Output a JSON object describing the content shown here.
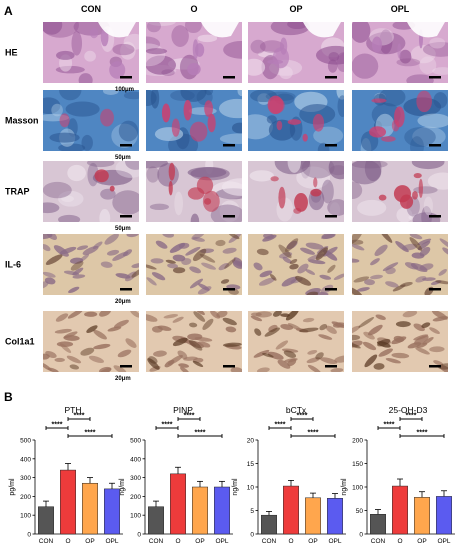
{
  "panel_a": {
    "label": "A",
    "columns": [
      "CON",
      "O",
      "OP",
      "OPL"
    ],
    "rows": [
      {
        "label": "HE",
        "scale": "100μm",
        "colors": {
          "base": "#d7a9cf",
          "accent": "#b67db8",
          "light": "#efdcea",
          "dark": "#8e4f90"
        }
      },
      {
        "label": "Masson",
        "scale": "50μm",
        "colors": {
          "base": "#4f86c2",
          "accent": "#cf3f6e",
          "light": "#b9d3ea",
          "dark": "#2a5590"
        }
      },
      {
        "label": "TRAP",
        "scale": "50μm",
        "colors": {
          "base": "#d8c6d4",
          "accent": "#c23a52",
          "light": "#f0e6ee",
          "dark": "#7f5e88"
        }
      },
      {
        "label": "IL-6",
        "scale": "20μm",
        "colors": {
          "base": "#ddc7a7",
          "accent": "#6b4a3a",
          "light": "#f0e2cc",
          "dark": "#8a6b86"
        }
      },
      {
        "label": "Col1a1",
        "scale": "20μm",
        "colors": {
          "base": "#e2c9b0",
          "accent": "#5a3a24",
          "light": "#f3e4d2",
          "dark": "#9a7260"
        }
      }
    ]
  },
  "panel_b": {
    "label": "B"
  },
  "chart_data": [
    {
      "type": "bar",
      "title": "PTH",
      "ylabel": "pg/ml",
      "ylim": [
        0,
        500
      ],
      "yticks": [
        "0",
        "100",
        "200",
        "300",
        "400",
        "500"
      ],
      "categories": [
        "CON",
        "O",
        "OP",
        "OPL"
      ],
      "values": [
        145,
        340,
        270,
        240
      ],
      "errors": [
        30,
        35,
        30,
        30
      ],
      "significance": [
        "****",
        "****",
        "****"
      ]
    },
    {
      "type": "bar",
      "title": "PINP",
      "ylabel": "ng/ml",
      "ylim": [
        0,
        500
      ],
      "yticks": [
        "0",
        "100",
        "200",
        "300",
        "400",
        "500"
      ],
      "categories": [
        "CON",
        "O",
        "OP",
        "OPL"
      ],
      "values": [
        145,
        320,
        250,
        250
      ],
      "errors": [
        30,
        35,
        30,
        30
      ],
      "significance": [
        "****",
        "****",
        "****"
      ]
    },
    {
      "type": "bar",
      "title": "bCTx",
      "ylabel": "ng/ml",
      "ylim": [
        0,
        20
      ],
      "yticks": [
        "0",
        "5",
        "10",
        "15",
        "20"
      ],
      "categories": [
        "CON",
        "O",
        "OP",
        "OPL"
      ],
      "values": [
        4,
        10.2,
        7.7,
        7.6
      ],
      "errors": [
        0.8,
        1.2,
        1.0,
        1.0
      ],
      "significance": [
        "****",
        "****",
        "****"
      ]
    },
    {
      "type": "bar",
      "title": "25-OH-D3",
      "ylabel": "ng/ml",
      "ylim": [
        0,
        200
      ],
      "yticks": [
        "0",
        "50",
        "100",
        "150",
        "200"
      ],
      "categories": [
        "CON",
        "O",
        "OP",
        "OPL"
      ],
      "values": [
        42,
        102,
        78,
        80
      ],
      "errors": [
        10,
        15,
        12,
        12
      ],
      "significance": [
        "****",
        "****",
        "****"
      ]
    }
  ],
  "bar_colors": [
    "#555555",
    "#ee3b3b",
    "#ffa64d",
    "#5b5bf0"
  ]
}
